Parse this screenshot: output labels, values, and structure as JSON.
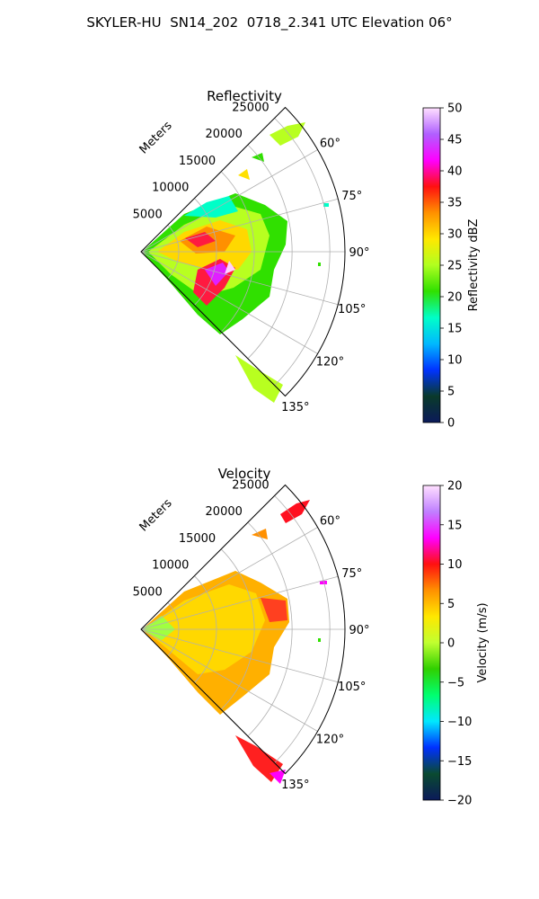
{
  "figure": {
    "title": "SKYLER-HU  SN14_202  0718_2.341 UTC Elevation 06°"
  },
  "chart_data": [
    {
      "type": "polar-sector",
      "title": "Reflectivity",
      "theta_range_deg": [
        45,
        135
      ],
      "theta_ticks": [
        "60°",
        "75°",
        "90°",
        "105°",
        "120°",
        "135°"
      ],
      "theta_tick_values": [
        60,
        75,
        90,
        105,
        120,
        135
      ],
      "r_label": "Meters",
      "r_ticks": [
        "5000",
        "10000",
        "15000",
        "20000",
        "25000"
      ],
      "r_tick_values": [
        5000,
        10000,
        15000,
        20000,
        25000
      ],
      "r_max": 27000,
      "grid": true,
      "colorbar": {
        "label": "Reflectivity dBZ",
        "ticks": [
          "0",
          "5",
          "10",
          "15",
          "20",
          "25",
          "30",
          "35",
          "40",
          "45",
          "50"
        ],
        "range": [
          0,
          50
        ],
        "stops": [
          "#0b1a5a",
          "#0a3a2a",
          "#0033ff",
          "#00b8ff",
          "#00ffc8",
          "#30e000",
          "#b0ff20",
          "#ffe800",
          "#ff9000",
          "#ff1010",
          "#ff00ff",
          "#b060ff",
          "#ffe0ff"
        ]
      }
    },
    {
      "type": "polar-sector",
      "title": "Velocity",
      "theta_range_deg": [
        45,
        135
      ],
      "theta_ticks": [
        "60°",
        "75°",
        "90°",
        "105°",
        "120°",
        "135°"
      ],
      "theta_tick_values": [
        60,
        75,
        90,
        105,
        120,
        135
      ],
      "r_label": "Meters",
      "r_ticks": [
        "5000",
        "10000",
        "15000",
        "20000",
        "25000"
      ],
      "r_tick_values": [
        5000,
        10000,
        15000,
        20000,
        25000
      ],
      "r_max": 27000,
      "grid": true,
      "colorbar": {
        "label": "Velocity (m/s)",
        "ticks": [
          "−20",
          "−15",
          "−10",
          "−5",
          "0",
          "5",
          "10",
          "15",
          "20"
        ],
        "range": [
          -20,
          20
        ],
        "stops": [
          "#0b1a5a",
          "#0a4a30",
          "#0030ff",
          "#00e8ff",
          "#00ff70",
          "#30d000",
          "#c0ff30",
          "#ffe800",
          "#ff9000",
          "#ff1010",
          "#ff00ff",
          "#c080ff",
          "#ffe0ff"
        ]
      }
    }
  ]
}
